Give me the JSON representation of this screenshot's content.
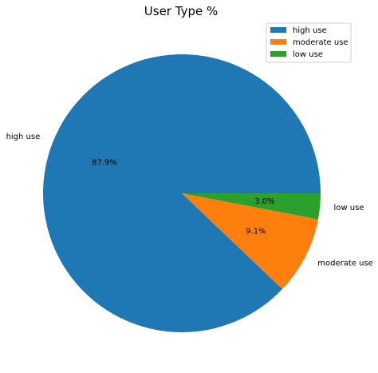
{
  "chart_data": {
    "type": "pie",
    "title": "User Type %",
    "categories": [
      "high use",
      "moderate use",
      "low use"
    ],
    "values": [
      87.9,
      9.1,
      3.0
    ],
    "labels_pct": [
      "87.9%",
      "9.1%",
      "3.0%"
    ],
    "colors": [
      "#1f77b4",
      "#ff7f0e",
      "#2ca02c"
    ],
    "legend": {
      "placement": "top-right",
      "entries": [
        "high use",
        "moderate use",
        "low use"
      ]
    }
  }
}
